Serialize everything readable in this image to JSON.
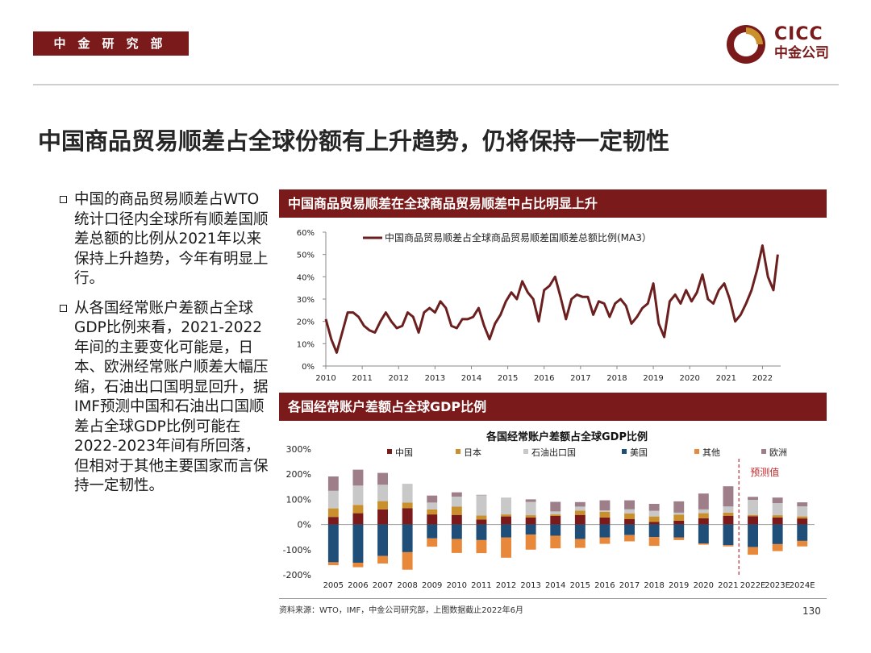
{
  "header": {
    "department": "中金研究部",
    "logo_en": "CICC",
    "logo_cn": "中金公司"
  },
  "title": "中国商品贸易顺差占全球份额有上升趋势，仍将保持一定韧性",
  "bullets": [
    "中国的商品贸易顺差占WTO统计口径内全球所有顺差国顺差总额的比例从2021年以来保持上升趋势，今年有明显上行。",
    "从各国经常账户差额占全球GDP比例来看，2021-2022年间的主要变化可能是，日本、欧洲经常账户顺差大幅压缩，石油出口国明显回升，据IMF预测中国和石油出口国顺差占全球GDP比例可能在2022-2023年间有所回落，但相对于其他主要国家而言保持一定韧性。"
  ],
  "panels": {
    "top_title": "中国商品贸易顺差在全球商品贸易顺差中占比明显上升",
    "bottom_title": "各国经常账户差额占全球GDP比例"
  },
  "colors": {
    "brand": "#7a1a1a",
    "line": "#6b1f1f",
    "china": "#7b1a1a",
    "japan": "#c9902c",
    "oil": "#c8c8c8",
    "usa": "#1f4e79",
    "other": "#e8883a",
    "europe": "#9e7f89"
  },
  "chart_data": [
    {
      "type": "line",
      "title": "",
      "legend": [
        "中国商品贸易顺差占全球商品贸易顺差国顺差总额比例(MA3）"
      ],
      "legend_position": "top",
      "ylim": [
        0,
        60
      ],
      "yticks": [
        "0%",
        "10%",
        "20%",
        "30%",
        "40%",
        "50%",
        "60%"
      ],
      "xlim": [
        2010,
        2022.5
      ],
      "xticks": [
        "2010",
        "2011",
        "2012",
        "2013",
        "2014",
        "2015",
        "2016",
        "2017",
        "2018",
        "2019",
        "2020",
        "2021",
        "2022"
      ],
      "x": [
        2010.0,
        2010.15,
        2010.3,
        2010.45,
        2010.6,
        2010.75,
        2010.9,
        2011.05,
        2011.2,
        2011.35,
        2011.5,
        2011.65,
        2011.8,
        2011.95,
        2012.1,
        2012.25,
        2012.4,
        2012.55,
        2012.7,
        2012.85,
        2013.0,
        2013.15,
        2013.3,
        2013.45,
        2013.6,
        2013.75,
        2013.9,
        2014.05,
        2014.2,
        2014.35,
        2014.5,
        2014.65,
        2014.8,
        2014.95,
        2015.1,
        2015.25,
        2015.4,
        2015.55,
        2015.7,
        2015.85,
        2016.0,
        2016.15,
        2016.3,
        2016.45,
        2016.6,
        2016.75,
        2016.9,
        2017.05,
        2017.2,
        2017.35,
        2017.5,
        2017.65,
        2017.8,
        2017.95,
        2018.1,
        2018.25,
        2018.4,
        2018.55,
        2018.7,
        2018.85,
        2019.0,
        2019.15,
        2019.3,
        2019.45,
        2019.6,
        2019.75,
        2019.9,
        2020.05,
        2020.2,
        2020.35,
        2020.5,
        2020.65,
        2020.8,
        2020.95,
        2021.1,
        2021.25,
        2021.4,
        2021.55,
        2021.7,
        2021.85,
        2022.0,
        2022.15,
        2022.3,
        2022.42
      ],
      "series": [
        {
          "name": "中国商品贸易顺差占全球商品贸易顺差国顺差总额比例(MA3）",
          "values": [
            21,
            12,
            6,
            15,
            24,
            24,
            22,
            18,
            16,
            15,
            20,
            24,
            20,
            17,
            18,
            24,
            22,
            15,
            24,
            26,
            24,
            29,
            26,
            18,
            17,
            21,
            21,
            22,
            26,
            18,
            12,
            19,
            23,
            29,
            33,
            30,
            38,
            33,
            30,
            20,
            34,
            36,
            40,
            31,
            21,
            30,
            32,
            31,
            31,
            23,
            29,
            28,
            22,
            28,
            30,
            27,
            19,
            22,
            26,
            28,
            37,
            19,
            13,
            29,
            32,
            28,
            34,
            29,
            33,
            41,
            30,
            28,
            34,
            37,
            30,
            20,
            23,
            28,
            34,
            43,
            54,
            40,
            34,
            50
          ]
        }
      ]
    },
    {
      "type": "bar",
      "stacked": true,
      "title": "各国经常账户差额占全球GDP比例",
      "ylim": [
        -200,
        300
      ],
      "yticks": [
        "-200%",
        "-100%",
        "0%",
        "100%",
        "200%",
        "300%"
      ],
      "categories": [
        "2005",
        "2006",
        "2007",
        "2008",
        "2009",
        "2010",
        "2011",
        "2012",
        "2013",
        "2014",
        "2015",
        "2016",
        "2017",
        "2018",
        "2019",
        "2020",
        "2021",
        "2022E",
        "2023E",
        "2024E"
      ],
      "forecast_label": "预测值",
      "forecast_start": "2022E",
      "series": [
        {
          "name": "中国",
          "positive": true,
          "values": [
            30,
            45,
            60,
            65,
            40,
            38,
            20,
            32,
            28,
            34,
            38,
            28,
            22,
            10,
            15,
            25,
            35,
            33,
            28,
            24
          ]
        },
        {
          "name": "日本",
          "positive": true,
          "values": [
            34,
            33,
            33,
            22,
            20,
            33,
            16,
            8,
            9,
            6,
            17,
            22,
            22,
            22,
            24,
            20,
            12,
            5,
            9,
            8
          ]
        },
        {
          "name": "石油出口国",
          "positive": true,
          "values": [
            70,
            77,
            65,
            75,
            27,
            40,
            80,
            67,
            53,
            12,
            16,
            6,
            16,
            22,
            8,
            15,
            25,
            60,
            48,
            40
          ]
        },
        {
          "name": "美国",
          "positive": false,
          "values": [
            -150,
            -152,
            -125,
            -110,
            -55,
            -58,
            -62,
            -52,
            -40,
            -45,
            -58,
            -52,
            -42,
            -50,
            -52,
            -75,
            -82,
            -90,
            -78,
            -65
          ]
        },
        {
          "name": "其他",
          "positive": false,
          "values": [
            -12,
            -18,
            -30,
            -70,
            -33,
            -55,
            -52,
            -80,
            -60,
            -50,
            -35,
            -25,
            -25,
            -35,
            -10,
            -5,
            -5,
            -30,
            -28,
            -22
          ]
        },
        {
          "name": "欧洲",
          "positive": true,
          "values": [
            57,
            63,
            47,
            0,
            28,
            17,
            2,
            0,
            10,
            38,
            18,
            40,
            36,
            28,
            45,
            63,
            80,
            12,
            22,
            16
          ]
        }
      ]
    }
  ],
  "footer": {
    "source": "资料来源：WTO，IMF，中金公司研究部，上图数据截止2022年6月",
    "page": "130"
  }
}
